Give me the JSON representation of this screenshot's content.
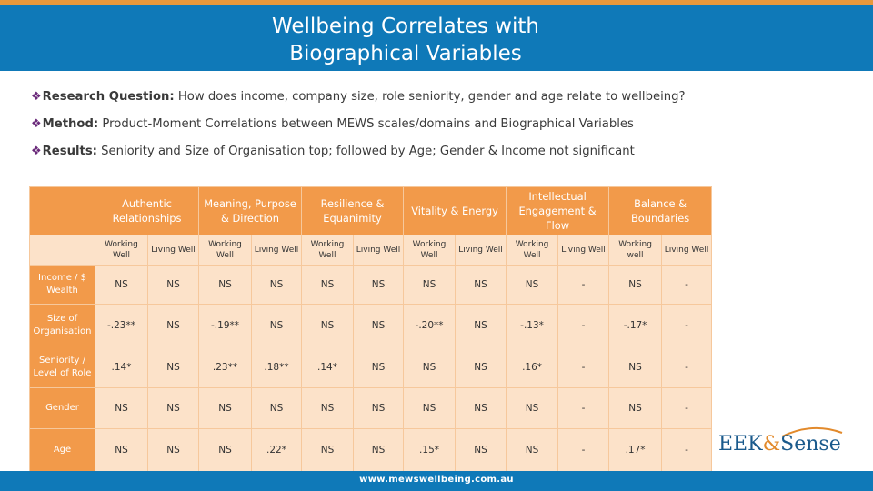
{
  "slide": {
    "title_line1": "Wellbeing Correlates with",
    "title_line2": "Biographical Variables",
    "colors": {
      "header": "#0f79b8",
      "table_header": "#f29a4a",
      "table_cell": "#fce2c9",
      "accent": "#e8983c"
    }
  },
  "bullets": [
    {
      "label": "Research Question:",
      "text": " How does income, company size, role seniority, gender and age relate to wellbeing?"
    },
    {
      "label": "Method:",
      "text": " Product-Moment Correlations between MEWS scales/domains and Biographical Variables"
    },
    {
      "label": "Results:",
      "text": " Seniority and Size of Organisation top; followed by Age; Gender & Income not significant"
    }
  ],
  "table": {
    "domains": [
      "Authentic Relationships",
      "Meaning, Purpose & Direction",
      "Resilience & Equanimity",
      "Vitality & Energy",
      "Intellectual Engagement & Flow",
      "Balance & Boundaries"
    ],
    "subheaders": [
      [
        "Working Well",
        "Living Well"
      ],
      [
        "Working Well",
        "Living Well"
      ],
      [
        "Working Well",
        "Living Well"
      ],
      [
        "Working Well",
        "Living Well"
      ],
      [
        "Working Well",
        "Living Well"
      ],
      [
        "Working well",
        "Living Well"
      ]
    ],
    "rows": [
      {
        "label": "Income / $ Wealth",
        "values": [
          "NS",
          "NS",
          "NS",
          "NS",
          "NS",
          "NS",
          "NS",
          "NS",
          "NS",
          "-",
          "NS",
          "-"
        ]
      },
      {
        "label": "Size of Organisation",
        "values": [
          "-.23**",
          "NS",
          "-.19**",
          "NS",
          "NS",
          "NS",
          "-.20**",
          "NS",
          "-.13*",
          "-",
          "-.17*",
          "-"
        ]
      },
      {
        "label": "Seniority / Level of Role",
        "values": [
          ".14*",
          "NS",
          ".23**",
          ".18**",
          ".14*",
          "NS",
          "NS",
          "NS",
          ".16*",
          "-",
          "NS",
          "-"
        ]
      },
      {
        "label": "Gender",
        "values": [
          "NS",
          "NS",
          "NS",
          "NS",
          "NS",
          "NS",
          "NS",
          "NS",
          "NS",
          "-",
          "NS",
          "-"
        ]
      },
      {
        "label": "Age",
        "values": [
          "NS",
          "NS",
          "NS",
          ".22*",
          "NS",
          "NS",
          ".15*",
          "NS",
          "NS",
          "-",
          ".17*",
          "-"
        ]
      }
    ]
  },
  "footer": {
    "url": "www.mewswellbeing.com.au"
  },
  "logo": {
    "part1": "EEK",
    "amp": "&",
    "part2": "Sense"
  }
}
